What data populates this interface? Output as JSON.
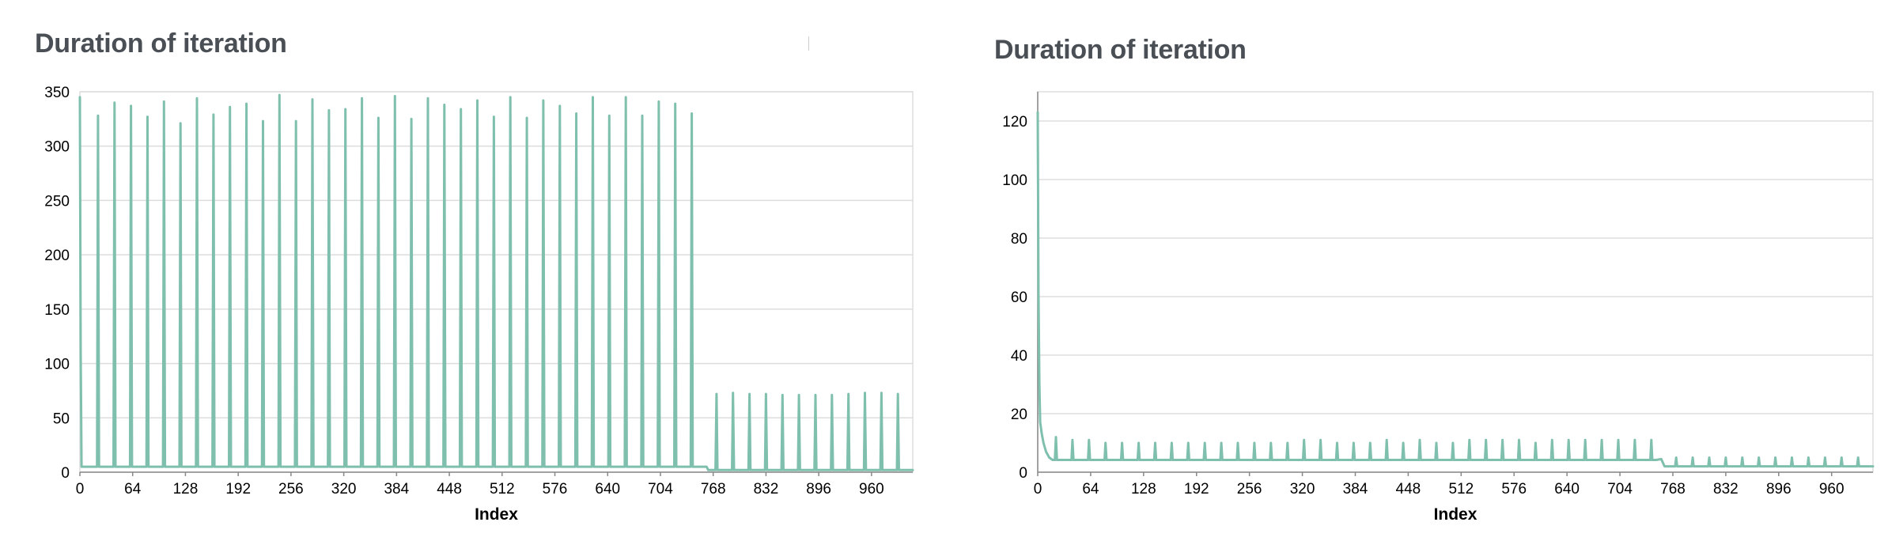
{
  "chart_data": [
    {
      "type": "line",
      "title": "Duration of iteration",
      "xlabel": "Index",
      "ylabel": "",
      "xlim": [
        0,
        1010
      ],
      "ylim": [
        0,
        350
      ],
      "xticks": [
        0,
        64,
        128,
        192,
        256,
        320,
        384,
        448,
        512,
        576,
        640,
        704,
        768,
        832,
        896,
        960
      ],
      "yticks": [
        0,
        50,
        100,
        150,
        200,
        250,
        300,
        350
      ],
      "grid": true,
      "line_color": "#7fbfad",
      "series": [
        {
          "name": "",
          "baseline": [
            [
              0,
              345
            ],
            [
              1,
              112
            ],
            [
              2,
              5
            ],
            [
              760,
              5
            ],
            [
              762,
              2
            ],
            [
              1010,
              2
            ]
          ],
          "spikes": [
            {
              "x": 22,
              "y": 328
            },
            {
              "x": 42,
              "y": 340
            },
            {
              "x": 62,
              "y": 337
            },
            {
              "x": 82,
              "y": 327
            },
            {
              "x": 102,
              "y": 341
            },
            {
              "x": 122,
              "y": 321
            },
            {
              "x": 142,
              "y": 344
            },
            {
              "x": 162,
              "y": 329
            },
            {
              "x": 182,
              "y": 336
            },
            {
              "x": 202,
              "y": 339
            },
            {
              "x": 222,
              "y": 323
            },
            {
              "x": 242,
              "y": 347
            },
            {
              "x": 262,
              "y": 323
            },
            {
              "x": 282,
              "y": 343
            },
            {
              "x": 302,
              "y": 333
            },
            {
              "x": 322,
              "y": 334
            },
            {
              "x": 342,
              "y": 344
            },
            {
              "x": 362,
              "y": 326
            },
            {
              "x": 382,
              "y": 346
            },
            {
              "x": 402,
              "y": 325
            },
            {
              "x": 422,
              "y": 344
            },
            {
              "x": 442,
              "y": 338
            },
            {
              "x": 462,
              "y": 334
            },
            {
              "x": 482,
              "y": 342
            },
            {
              "x": 502,
              "y": 327
            },
            {
              "x": 522,
              "y": 345
            },
            {
              "x": 542,
              "y": 326
            },
            {
              "x": 562,
              "y": 342
            },
            {
              "x": 582,
              "y": 337
            },
            {
              "x": 602,
              "y": 330
            },
            {
              "x": 622,
              "y": 345
            },
            {
              "x": 642,
              "y": 328
            },
            {
              "x": 662,
              "y": 345
            },
            {
              "x": 682,
              "y": 328
            },
            {
              "x": 702,
              "y": 341
            },
            {
              "x": 722,
              "y": 339
            },
            {
              "x": 742,
              "y": 330
            },
            {
              "x": 772,
              "y": 72
            },
            {
              "x": 792,
              "y": 73
            },
            {
              "x": 812,
              "y": 72
            },
            {
              "x": 832,
              "y": 72
            },
            {
              "x": 852,
              "y": 71
            },
            {
              "x": 872,
              "y": 71
            },
            {
              "x": 892,
              "y": 71
            },
            {
              "x": 912,
              "y": 71
            },
            {
              "x": 932,
              "y": 72
            },
            {
              "x": 952,
              "y": 73
            },
            {
              "x": 972,
              "y": 73
            },
            {
              "x": 992,
              "y": 72
            }
          ]
        }
      ]
    },
    {
      "type": "line",
      "title": "Duration of iteration",
      "xlabel": "Index",
      "ylabel": "",
      "xlim": [
        0,
        1010
      ],
      "ylim": [
        0,
        130
      ],
      "xticks": [
        0,
        64,
        128,
        192,
        256,
        320,
        384,
        448,
        512,
        576,
        640,
        704,
        768,
        832,
        896,
        960
      ],
      "yticks": [
        0,
        20,
        40,
        60,
        80,
        100,
        120
      ],
      "grid": true,
      "line_color": "#7fbfad",
      "series": [
        {
          "name": "",
          "baseline": [
            [
              0,
              123
            ],
            [
              1,
              60
            ],
            [
              2,
              30
            ],
            [
              3,
              17
            ],
            [
              5,
              13
            ],
            [
              7,
              10
            ],
            [
              10,
              7
            ],
            [
              14,
              5
            ],
            [
              18,
              4.2
            ],
            [
              748,
              4.2
            ],
            [
              754,
              4.5
            ],
            [
              758,
              2
            ],
            [
              1010,
              2
            ]
          ],
          "spikes": [
            {
              "x": 22,
              "y": 12
            },
            {
              "x": 42,
              "y": 11
            },
            {
              "x": 62,
              "y": 11
            },
            {
              "x": 82,
              "y": 10
            },
            {
              "x": 102,
              "y": 10
            },
            {
              "x": 122,
              "y": 10
            },
            {
              "x": 142,
              "y": 10
            },
            {
              "x": 162,
              "y": 10
            },
            {
              "x": 182,
              "y": 10
            },
            {
              "x": 202,
              "y": 10
            },
            {
              "x": 222,
              "y": 10
            },
            {
              "x": 242,
              "y": 10
            },
            {
              "x": 262,
              "y": 10
            },
            {
              "x": 282,
              "y": 10
            },
            {
              "x": 302,
              "y": 10
            },
            {
              "x": 322,
              "y": 11
            },
            {
              "x": 342,
              "y": 11
            },
            {
              "x": 362,
              "y": 10
            },
            {
              "x": 382,
              "y": 10
            },
            {
              "x": 402,
              "y": 10
            },
            {
              "x": 422,
              "y": 11
            },
            {
              "x": 442,
              "y": 10
            },
            {
              "x": 462,
              "y": 11
            },
            {
              "x": 482,
              "y": 10
            },
            {
              "x": 502,
              "y": 10
            },
            {
              "x": 522,
              "y": 11
            },
            {
              "x": 542,
              "y": 11
            },
            {
              "x": 562,
              "y": 11
            },
            {
              "x": 582,
              "y": 11
            },
            {
              "x": 602,
              "y": 10
            },
            {
              "x": 622,
              "y": 11
            },
            {
              "x": 642,
              "y": 11
            },
            {
              "x": 662,
              "y": 11
            },
            {
              "x": 682,
              "y": 11
            },
            {
              "x": 702,
              "y": 11
            },
            {
              "x": 722,
              "y": 11
            },
            {
              "x": 742,
              "y": 11
            },
            {
              "x": 772,
              "y": 5
            },
            {
              "x": 792,
              "y": 5
            },
            {
              "x": 812,
              "y": 5
            },
            {
              "x": 832,
              "y": 5
            },
            {
              "x": 852,
              "y": 5
            },
            {
              "x": 872,
              "y": 5
            },
            {
              "x": 892,
              "y": 5
            },
            {
              "x": 912,
              "y": 5
            },
            {
              "x": 932,
              "y": 5
            },
            {
              "x": 952,
              "y": 5
            },
            {
              "x": 972,
              "y": 5
            },
            {
              "x": 992,
              "y": 5
            }
          ]
        }
      ]
    }
  ]
}
